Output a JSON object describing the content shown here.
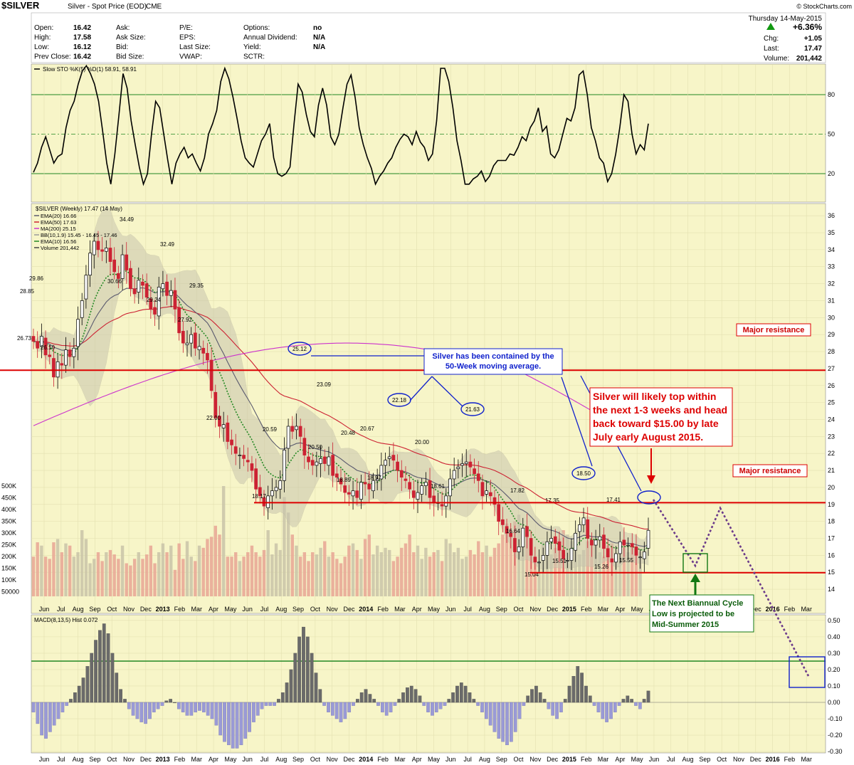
{
  "header": {
    "symbol": "$SILVER",
    "name": "Silver - Spot Price (EOD)",
    "exchange": "CME",
    "copyright": "© StockCharts.com",
    "date": "Thursday 14-May-2015",
    "pct_change": "+6.36%",
    "chg_label": "Chg:",
    "chg": "+1.05",
    "last_label": "Last:",
    "last": "17.47",
    "volume_label": "Volume:",
    "volume": "201,442",
    "fields": [
      [
        "Open:",
        "16.42",
        "Ask:",
        "",
        "P/E:",
        "",
        "Options:",
        "no"
      ],
      [
        "High:",
        "17.58",
        "Ask Size:",
        "",
        "EPS:",
        "",
        "Annual Dividend:",
        "N/A"
      ],
      [
        "Low:",
        "16.12",
        "Bid:",
        "",
        "Last Size:",
        "",
        "Yield:",
        "N/A"
      ],
      [
        "Prev Close:",
        "16.42",
        "Bid Size:",
        "",
        "VWAP:",
        "",
        "SCTR:",
        ""
      ]
    ]
  },
  "chart_data": [
    {
      "type": "line",
      "panel": "Slow Stochastic",
      "title": "Slow STO %K(5) %D(1) 58.91, 58.91",
      "legend_value": "58.91",
      "ylim": [
        0,
        100
      ],
      "ticks": [
        20,
        50,
        80
      ],
      "reference_lines": [
        20,
        50,
        80
      ],
      "series": [
        {
          "name": "Slow STO",
          "values": [
            21,
            28,
            40,
            48,
            38,
            28,
            33,
            35,
            55,
            68,
            75,
            88,
            98,
            102,
            96,
            88,
            75,
            52,
            28,
            12,
            35,
            65,
            96,
            85,
            60,
            42,
            25,
            12,
            20,
            50,
            75,
            70,
            50,
            30,
            12,
            28,
            35,
            40,
            32,
            35,
            28,
            22,
            32,
            50,
            58,
            68,
            90,
            100,
            92,
            78,
            62,
            45,
            32,
            28,
            25,
            35,
            45,
            50,
            58,
            32,
            20,
            18,
            20,
            25,
            58,
            88,
            82,
            65,
            52,
            48,
            72,
            85,
            72,
            48,
            42,
            50,
            70,
            88,
            95,
            78,
            55,
            42,
            32,
            24,
            12,
            18,
            22,
            28,
            32,
            40,
            46,
            50,
            48,
            42,
            52,
            44,
            40,
            30,
            35,
            60,
            100,
            100,
            90,
            70,
            45,
            30,
            12,
            12,
            16,
            18,
            22,
            14,
            18,
            26,
            30,
            30,
            30,
            35,
            34,
            40,
            48,
            45,
            55,
            60,
            70,
            52,
            56,
            35,
            32,
            38,
            50,
            62,
            60,
            70,
            95,
            98,
            80,
            55,
            45,
            32,
            28,
            14,
            20,
            35,
            55,
            80,
            75,
            50,
            35,
            42,
            38,
            58
          ]
        }
      ]
    },
    {
      "type": "line",
      "panel": "Price",
      "title": "$SILVER (Weekly) 17.47 (14 May)",
      "legend": [
        {
          "name": "EMA(20) 16.66",
          "color": "#5a5a6e"
        },
        {
          "name": "EMA(50) 17.63",
          "color": "#cc2233"
        },
        {
          "name": "MA(200) 25.15",
          "color": "#cc33cc"
        },
        {
          "name": "BB(10,1.9) 15.45 - 16.45 - 17.46",
          "color": "#999999"
        },
        {
          "name": "EMA(10) 16.56",
          "color": "#228822"
        },
        {
          "name": "Volume 201,442",
          "color": "#444444"
        }
      ],
      "ylim": [
        13.5,
        36.3
      ],
      "y_ticks": [
        14,
        15,
        16,
        17,
        18,
        19,
        20,
        21,
        22,
        23,
        24,
        25,
        26,
        27,
        28,
        29,
        30,
        31,
        32,
        33,
        34,
        35,
        36
      ],
      "x_ticks": [
        "Jun",
        "Jul",
        "Aug",
        "Sep",
        "Oct",
        "Nov",
        "Dec",
        "2013",
        "Feb",
        "Mar",
        "Apr",
        "May",
        "Jun",
        "Jul",
        "Aug",
        "Sep",
        "Oct",
        "Nov",
        "Dec",
        "2014",
        "Feb",
        "Mar",
        "Apr",
        "May",
        "Jun",
        "Jul",
        "Aug",
        "Sep",
        "Oct",
        "Nov",
        "Dec",
        "2015",
        "Feb",
        "Mar",
        "Apr",
        "May",
        "Jun",
        "Jul",
        "Aug",
        "Sep",
        "Oct",
        "Nov",
        "Dec",
        "2016",
        "Feb",
        "Mar"
      ],
      "weekly_close": [
        28.6,
        28.2,
        28.9,
        27.8,
        27.7,
        26.5,
        27.4,
        27.2,
        28.1,
        27.7,
        28.2,
        29.9,
        31.0,
        32.5,
        33.8,
        34.5,
        34.0,
        33.9,
        34.1,
        33.3,
        32.7,
        32.3,
        33.7,
        32.8,
        31.7,
        31.4,
        32.2,
        31.9,
        31.2,
        30.5,
        30.2,
        31.8,
        32.0,
        31.3,
        31.6,
        30.5,
        29.1,
        28.5,
        28.5,
        29.0,
        28.2,
        28.3,
        27.9,
        27.5,
        25.7,
        24.1,
        23.6,
        23.7,
        22.7,
        22.5,
        22.0,
        21.9,
        21.7,
        21.5,
        21.0,
        19.9,
        19.5,
        18.9,
        19.5,
        19.8,
        20.0,
        20.4,
        22.2,
        23.6,
        23.3,
        23.6,
        23.0,
        21.9,
        21.5,
        21.3,
        21.5,
        21.7,
        21.4,
        21.8,
        20.7,
        20.6,
        20.2,
        19.7,
        19.6,
        19.8,
        19.4,
        20.3,
        20.2,
        19.9,
        20.4,
        20.5,
        21.3,
        21.6,
        21.8,
        21.6,
        21.0,
        20.6,
        20.4,
        19.9,
        19.4,
        19.7,
        20.1,
        20.3,
        19.4,
        19.1,
        19.1,
        18.9,
        19.5,
        20.5,
        21.0,
        21.2,
        21.4,
        21.5,
        21.2,
        20.8,
        20.4,
        19.5,
        19.8,
        19.5,
        19.0,
        18.0,
        17.8,
        17.3,
        17.1,
        16.2,
        16.5,
        17.6,
        17.1,
        16.0,
        15.6,
        15.6,
        16.0,
        16.8,
        17.0,
        16.7,
        16.3,
        15.8,
        15.7,
        16.4,
        17.3,
        17.8,
        18.2,
        17.0,
        16.6,
        16.9,
        17.1,
        16.4,
        15.9,
        15.6,
        16.1,
        16.8,
        16.6,
        16.6,
        16.5,
        16.0,
        15.9,
        16.2,
        17.47
      ],
      "weekly_open": [
        28.9,
        28.6,
        28.3,
        28.8,
        27.8,
        27.6,
        26.5,
        27.3,
        27.2,
        28.1,
        27.7,
        28.3,
        30.0,
        31.1,
        32.5,
        33.7,
        34.5,
        34.0,
        33.9,
        34.1,
        33.4,
        32.6,
        32.3,
        33.7,
        32.9,
        31.7,
        31.5,
        32.1,
        32.0,
        31.1,
        30.6,
        30.1,
        31.7,
        32.1,
        31.3,
        31.6,
        30.6,
        29.2,
        28.4,
        28.5,
        29.1,
        28.1,
        28.2,
        27.9,
        27.5,
        25.6,
        24.2,
        23.5,
        23.8,
        22.8,
        22.4,
        21.9,
        21.9,
        21.6,
        21.4,
        21.1,
        20.0,
        19.4,
        18.8,
        19.5,
        19.8,
        19.9,
        20.4,
        22.3,
        23.6,
        23.4,
        23.6,
        22.9,
        21.8,
        21.6,
        21.3,
        21.4,
        21.8,
        21.3,
        21.9,
        20.8,
        20.5,
        20.1,
        19.7,
        19.5,
        19.8,
        19.3,
        20.3,
        20.2,
        19.8,
        20.4,
        20.5,
        21.3,
        21.7,
        21.9,
        21.5,
        21.0,
        20.5,
        20.3,
        19.8,
        19.3,
        19.6,
        20.1,
        20.4,
        19.5,
        19.1,
        19.0,
        18.9,
        19.5,
        20.5,
        21.1,
        21.3,
        21.4,
        21.5,
        21.1,
        20.8,
        20.3,
        19.6,
        19.7,
        19.4,
        19.0,
        18.1,
        17.7,
        17.3,
        17.0,
        16.2,
        16.5,
        17.7,
        17.0,
        15.9,
        15.6,
        15.7,
        16.0,
        16.8,
        17.1,
        16.8,
        16.3,
        15.7,
        15.7,
        16.3,
        17.4,
        17.8,
        18.1,
        16.9,
        16.6,
        16.9,
        17.2,
        16.4,
        15.8,
        15.6,
        16.1,
        16.9,
        16.6,
        16.7,
        16.5,
        15.9,
        15.8,
        16.42
      ],
      "series": [
        {
          "name": "EMA(50) 17.63",
          "type": "line"
        },
        {
          "name": "MA(200) 25.15",
          "type": "line"
        },
        {
          "name": "EMA(20) 16.66",
          "type": "line"
        },
        {
          "name": "EMA(10) 16.56",
          "type": "line"
        }
      ],
      "price_labels": [
        {
          "text": "28.85",
          "value": 28.85
        },
        {
          "text": "29.86",
          "value": 29.86
        },
        {
          "text": "26.73",
          "value": 26.73
        },
        {
          "text": "26.10",
          "value": 26.1
        },
        {
          "text": "34.49",
          "value": 34.49
        },
        {
          "text": "30.66",
          "value": 30.66
        },
        {
          "text": "32.49",
          "value": 32.49
        },
        {
          "text": "29.24",
          "value": 29.24
        },
        {
          "text": "29.35",
          "value": 29.35
        },
        {
          "text": "27.92",
          "value": 27.92
        },
        {
          "text": "22.00",
          "value": 22.0
        },
        {
          "text": "18.17",
          "value": 18.17
        },
        {
          "text": "20.59",
          "value": 20.59
        },
        {
          "text": "25.12",
          "value": 25.12
        },
        {
          "text": "23.09",
          "value": 23.09
        },
        {
          "text": "20.50",
          "value": 20.5
        },
        {
          "text": "20.48",
          "value": 20.48
        },
        {
          "text": "18.89",
          "value": 18.89
        },
        {
          "text": "20.67",
          "value": 20.67
        },
        {
          "text": "18.97",
          "value": 18.97
        },
        {
          "text": "22.18",
          "value": 22.18
        },
        {
          "text": "20.00",
          "value": 20.0
        },
        {
          "text": "18.61",
          "value": 18.61
        },
        {
          "text": "21.63",
          "value": 21.63
        },
        {
          "text": "17.82",
          "value": 17.82
        },
        {
          "text": "16.64",
          "value": 16.64
        },
        {
          "text": "15.04",
          "value": 15.04
        },
        {
          "text": "17.35",
          "value": 17.35
        },
        {
          "text": "15.51",
          "value": 15.51
        },
        {
          "text": "18.50",
          "value": 18.5
        },
        {
          "text": "17.41",
          "value": 17.41
        },
        {
          "text": "15.26",
          "value": 15.26
        },
        {
          "text": "15.55",
          "value": 15.55
        }
      ],
      "horizontal_lines": [
        {
          "value": 26.9,
          "label": "Major resistance"
        },
        {
          "value": 19.1,
          "label": "Major resistance"
        },
        {
          "value": 14.98,
          "label": ""
        }
      ],
      "projection": {
        "points": [
          [
            17.9,
            "2015-05"
          ],
          [
            15.2,
            "2015-08"
          ],
          [
            17.3,
            "2015-09"
          ],
          [
            10.5,
            "2016-03"
          ]
        ]
      },
      "annotations": [
        "Silver has been contained by the 50-Week moving average.",
        "Silver will likely top within the next 1-3 weeks and head back toward $15.00 by late July early August 2015.",
        "The Next Biannual Cycle Low is projected to be Mid-Summer 2015"
      ]
    },
    {
      "type": "bar",
      "panel": "Volume",
      "y_ticks": [
        "500K",
        "450K",
        "400K",
        "350K",
        "300K",
        "250K",
        "200K",
        "150K",
        "100K",
        "50000"
      ],
      "values": [
        180,
        245,
        230,
        180,
        170,
        245,
        260,
        200,
        240,
        230,
        180,
        200,
        300,
        260,
        150,
        170,
        200,
        160,
        200,
        210,
        190,
        170,
        230,
        150,
        140,
        170,
        200,
        170,
        190,
        230,
        150,
        200,
        240,
        200,
        230,
        120,
        240,
        170,
        250,
        180,
        160,
        230,
        220,
        260,
        270,
        320,
        280,
        500,
        180,
        180,
        200,
        160,
        180,
        200,
        230,
        200,
        180,
        210,
        300,
        190,
        240,
        210,
        450,
        380,
        280,
        230,
        180,
        200,
        160,
        200,
        190,
        220,
        250,
        180,
        200,
        170,
        150,
        180,
        230,
        240,
        210,
        170,
        260,
        280,
        190,
        230,
        200,
        220,
        210,
        160,
        180,
        220,
        240,
        280,
        200,
        230,
        170,
        220,
        180,
        200,
        210,
        160,
        260,
        240,
        200,
        220,
        170,
        180,
        210,
        190,
        250,
        200,
        230,
        180,
        220,
        240,
        280,
        330,
        300,
        340,
        370,
        250,
        300,
        200,
        180,
        160,
        250,
        230,
        190,
        220,
        260,
        300,
        280,
        250,
        230,
        190,
        210,
        250,
        270,
        240,
        200,
        180,
        230,
        240,
        190,
        230,
        220,
        200,
        230,
        210,
        201
      ]
    },
    {
      "type": "bar",
      "panel": "MACD",
      "title": "MACD(8,13,5) Hist 0.072",
      "ylim": [
        -0.3,
        0.5
      ],
      "y_ticks": [
        -0.3,
        -0.2,
        -0.1,
        0.0,
        0.1,
        0.2,
        0.3,
        0.4,
        0.5
      ],
      "values": [
        -0.06,
        -0.13,
        -0.2,
        -0.22,
        -0.18,
        -0.14,
        -0.1,
        -0.06,
        -0.02,
        0.02,
        0.06,
        0.1,
        0.15,
        0.22,
        0.3,
        0.38,
        0.44,
        0.48,
        0.42,
        0.3,
        0.18,
        0.08,
        0.02,
        -0.04,
        -0.08,
        -0.1,
        -0.12,
        -0.13,
        -0.1,
        -0.06,
        -0.04,
        -0.02,
        0.01,
        0.02,
        0.0,
        -0.04,
        -0.06,
        -0.08,
        -0.08,
        -0.06,
        -0.05,
        -0.06,
        -0.08,
        -0.1,
        -0.14,
        -0.2,
        -0.24,
        -0.26,
        -0.28,
        -0.28,
        -0.26,
        -0.22,
        -0.18,
        -0.12,
        -0.08,
        -0.04,
        -0.02,
        -0.02,
        -0.02,
        0.02,
        0.06,
        0.12,
        0.2,
        0.3,
        0.4,
        0.46,
        0.4,
        0.3,
        0.18,
        0.08,
        -0.02,
        -0.06,
        -0.08,
        -0.1,
        -0.12,
        -0.1,
        -0.06,
        -0.02,
        0.02,
        0.06,
        0.08,
        0.05,
        0.02,
        -0.02,
        -0.06,
        -0.08,
        -0.06,
        -0.02,
        0.02,
        0.06,
        0.09,
        0.1,
        0.08,
        0.04,
        -0.02,
        -0.06,
        -0.08,
        -0.06,
        -0.04,
        -0.02,
        0.02,
        0.06,
        0.1,
        0.12,
        0.1,
        0.06,
        0.02,
        -0.02,
        -0.06,
        -0.1,
        -0.14,
        -0.18,
        -0.22,
        -0.24,
        -0.26,
        -0.24,
        -0.18,
        -0.1,
        -0.02,
        0.04,
        0.08,
        0.1,
        0.06,
        0.02,
        -0.04,
        -0.08,
        -0.1,
        -0.06,
        0.02,
        0.1,
        0.16,
        0.22,
        0.18,
        0.1,
        0.04,
        -0.02,
        -0.06,
        -0.1,
        -0.12,
        -0.1,
        -0.06,
        -0.02,
        0.02,
        0.04,
        0.02,
        -0.02,
        -0.04,
        0.02,
        0.07
      ]
    }
  ]
}
